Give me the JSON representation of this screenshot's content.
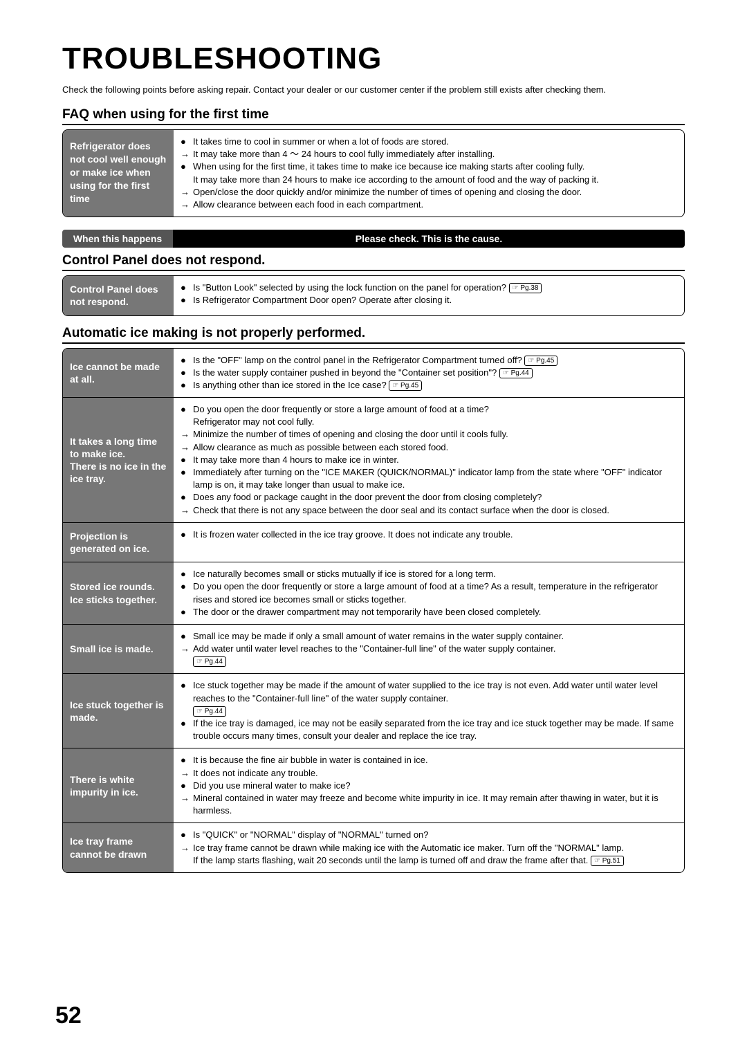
{
  "title": "TROUBLESHOOTING",
  "intro": "Check the following points before asking repair. Contact your dealer or our customer center if the problem still exists after checking them.",
  "section_faq_title": "FAQ when using for the first time",
  "faq_box": {
    "left": "Refrigerator does not cool well enough or make ice when using for the first time",
    "lines": [
      {
        "mark": "●",
        "txt": "It takes time to cool in summer or when a lot of foods are stored."
      },
      {
        "mark": "→",
        "txt": "It may take more than 4 ～ 24 hours to cool fully immediately after installing."
      },
      {
        "mark": "●",
        "txt": "When using for the first time, it takes time to make ice because ice making starts after cooling fully."
      },
      {
        "mark": "",
        "txt": "It may take more than 24 hours to make ice according to the amount of food and the way of packing it."
      },
      {
        "mark": "→",
        "txt": "Open/close the door quickly and/or minimize the number of times of opening and closing the door."
      },
      {
        "mark": "→",
        "txt": "Allow clearance between each food in each compartment."
      }
    ]
  },
  "header_bar": {
    "left": "When this happens",
    "right": "Please check. This is the cause."
  },
  "section_cp_title": "Control Panel does not respond.",
  "cp_row": {
    "left": "Control Panel does not respond.",
    "lines": [
      {
        "mark": "●",
        "txt": "Is \"Button Look\" selected by using the lock function on the panel for operation?",
        "ref": "Pg.38"
      },
      {
        "mark": "●",
        "txt": "Is Refrigerator Compartment Door open? Operate after closing it."
      }
    ]
  },
  "section_ice_title": "Automatic ice making is not properly performed.",
  "ice_rows": [
    {
      "left": "Ice cannot be made at all.",
      "lines": [
        {
          "mark": "●",
          "txt": "Is the \"OFF\" lamp on the control panel in the Refrigerator Compartment turned off?",
          "ref": "Pg.45"
        },
        {
          "mark": "●",
          "txt": "Is the water supply container pushed in beyond the \"Container set position\"?",
          "ref": "Pg.44"
        },
        {
          "mark": "●",
          "txt": "Is anything other than ice stored in the Ice case?",
          "ref": "Pg.45"
        }
      ]
    },
    {
      "left": "It takes a long time to make ice.\nThere is no ice in the ice tray.",
      "lines": [
        {
          "mark": "●",
          "txt": "Do you open the door frequently or store a large amount of food at a time?"
        },
        {
          "mark": "",
          "txt": "Refrigerator may not cool fully."
        },
        {
          "mark": "→",
          "txt": "Minimize the number of times of opening and closing the door until it cools fully."
        },
        {
          "mark": "→",
          "txt": "Allow clearance as much as possible between each stored food."
        },
        {
          "mark": "●",
          "txt": "It may take more than 4 hours to make ice in winter."
        },
        {
          "mark": "●",
          "txt": "Immediately after turning on the \"ICE MAKER (QUICK/NORMAL)\" indicator lamp from the state where \"OFF\" indicator lamp is on, it may take longer than usual to make ice."
        },
        {
          "mark": "●",
          "txt": "Does any food or package caught in the door prevent the door from closing completely?"
        },
        {
          "mark": "→",
          "txt": "Check that there is not any space between the door seal and its contact surface when the door is closed."
        }
      ]
    },
    {
      "left": "Projection is generated on ice.",
      "lines": [
        {
          "mark": "●",
          "txt": "It is frozen water collected in the ice tray groove. It does not indicate any trouble."
        }
      ]
    },
    {
      "left": "Stored ice rounds.\nIce sticks together.",
      "lines": [
        {
          "mark": "●",
          "txt": "Ice naturally becomes small or sticks mutually if ice is stored for a long term."
        },
        {
          "mark": "●",
          "txt": "Do you open the door frequently or store a large amount of food at a time? As a result, temperature in the refrigerator rises and stored ice becomes small or sticks together."
        },
        {
          "mark": "●",
          "txt": "The door or the drawer compartment may not temporarily have been closed completely."
        }
      ]
    },
    {
      "left": "Small ice is made.",
      "lines": [
        {
          "mark": "●",
          "txt": "Small ice may be made if only a small amount of water remains in the water supply container."
        },
        {
          "mark": "→",
          "txt": "Add water until water level reaches to the \"Container-full line\" of the water supply container.",
          "ref_below": "Pg.44"
        }
      ]
    },
    {
      "left": "Ice stuck together is made.",
      "lines": [
        {
          "mark": "●",
          "txt": "Ice stuck together may be made if the amount of water supplied to the ice tray is not even. Add water until water level reaches to the \"Container-full line\" of the water supply container.",
          "ref_below": "Pg.44"
        },
        {
          "mark": "●",
          "txt": "If the ice tray is damaged, ice may not be easily separated from the ice tray and ice stuck together may be made. If same trouble occurs many times, consult your dealer and replace the ice tray."
        }
      ]
    },
    {
      "left": "There is white impurity in ice.",
      "lines": [
        {
          "mark": "●",
          "txt": "It is because the fine air bubble in water is contained in ice."
        },
        {
          "mark": "→",
          "txt": "It does not indicate any trouble."
        },
        {
          "mark": "●",
          "txt": "Did you use mineral water to make ice?"
        },
        {
          "mark": "→",
          "txt": "Mineral contained in water may freeze and become white impurity in ice. It may remain after thawing in water, but it is harmless."
        }
      ]
    },
    {
      "left": "Ice tray frame cannot be drawn",
      "lines": [
        {
          "mark": "●",
          "txt": "Is \"QUICK\" or \"NORMAL\" display of \"NORMAL\" turned on?"
        },
        {
          "mark": "→",
          "txt": "Ice tray frame cannot be drawn while making ice with the Automatic ice maker. Turn off the \"NORMAL\" lamp."
        },
        {
          "mark": "",
          "txt": "If the lamp starts flashing, wait 20 seconds until the lamp is turned off and draw the frame after that.",
          "ref": "Pg.51"
        }
      ]
    }
  ],
  "page_number": "52",
  "colors": {
    "grey_bg": "#777777",
    "dark_bg": "#555555",
    "black": "#000000"
  }
}
